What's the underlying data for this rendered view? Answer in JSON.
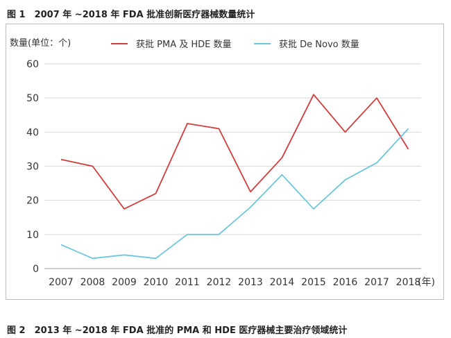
{
  "figure1": {
    "title": "图 1　2007 年 ~2018 年 FDA 批准创新医疗器械数量统计"
  },
  "figure2": {
    "title": "图 2　2013 年 ~2018 年 FDA 批准的 PMA 和 HDE 医疗器械主要治疗领域统计"
  },
  "chart_data": {
    "type": "line",
    "title": "2007 年 ~2018 年 FDA 批准创新医疗器械数量统计",
    "ylabel": "数量(单位：个)",
    "xlabel": "(年)",
    "x": [
      "2007",
      "2008",
      "2009",
      "2010",
      "2011",
      "2012",
      "2013",
      "2014",
      "2015",
      "2016",
      "2017",
      "2018"
    ],
    "yticks": [
      "0",
      "10",
      "20",
      "30",
      "40",
      "50",
      "60"
    ],
    "ylim": [
      0,
      60
    ],
    "grid": true,
    "legend": "top",
    "series": [
      {
        "name": "获批 PMA 及 HDE 数量",
        "color": "#d23b3b",
        "values": [
          32,
          30,
          17.5,
          22,
          42.5,
          41,
          22.5,
          32.5,
          51,
          40,
          50,
          35
        ]
      },
      {
        "name": "获批 De Novo 数量",
        "color": "#6ec6dc",
        "values": [
          7,
          3,
          4,
          3,
          10,
          10,
          18,
          27.5,
          17.5,
          26,
          31,
          41
        ]
      }
    ]
  }
}
